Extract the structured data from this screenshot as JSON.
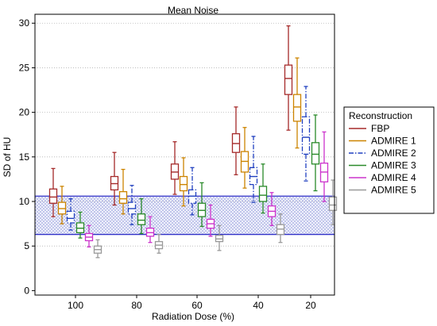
{
  "chart_data": {
    "type": "box",
    "title": "Mean Noise",
    "xlabel": "Radiation Dose (%)",
    "ylabel": "SD of HU",
    "categories": [
      "100",
      "80",
      "60",
      "40",
      "20"
    ],
    "ylim": [
      -0.5,
      31
    ],
    "yticks": [
      "0",
      "5",
      "10",
      "15",
      "20",
      "25",
      "30"
    ],
    "grid": "horizontal dotted",
    "legend_title": "Reconstruction",
    "legend_position": "right",
    "reference_band": {
      "low": 6.3,
      "high": 10.6,
      "color": "#3030c8"
    },
    "series": [
      {
        "name": "FBP",
        "color": "#a52a2a",
        "dash": "solid",
        "boxes": [
          {
            "min": 8.3,
            "q1": 9.8,
            "median": 10.5,
            "q3": 11.4,
            "max": 13.7
          },
          {
            "min": 9.6,
            "q1": 11.3,
            "median": 12.0,
            "q3": 12.8,
            "max": 15.5
          },
          {
            "min": 10.8,
            "q1": 12.5,
            "median": 13.3,
            "q3": 14.2,
            "max": 16.7
          },
          {
            "min": 13.0,
            "q1": 15.5,
            "median": 16.5,
            "q3": 17.6,
            "max": 20.6
          },
          {
            "min": 18.0,
            "q1": 22.0,
            "median": 23.8,
            "q3": 25.3,
            "max": 29.7
          }
        ]
      },
      {
        "name": "ADMIRE 1",
        "color": "#cc8400",
        "dash": "solid",
        "boxes": [
          {
            "min": 7.5,
            "q1": 8.6,
            "median": 9.2,
            "q3": 9.9,
            "max": 11.7
          },
          {
            "min": 8.6,
            "q1": 9.8,
            "median": 10.3,
            "q3": 11.1,
            "max": 13.6
          },
          {
            "min": 9.5,
            "q1": 11.2,
            "median": 11.9,
            "q3": 12.8,
            "max": 14.9
          },
          {
            "min": 11.5,
            "q1": 13.3,
            "median": 14.5,
            "q3": 15.6,
            "max": 18.3
          },
          {
            "min": 16.0,
            "q1": 19.0,
            "median": 20.6,
            "q3": 22.0,
            "max": 26.1
          }
        ]
      },
      {
        "name": "ADMIRE 2",
        "color": "#1f3fbf",
        "dash": "dashdot",
        "boxes": [
          {
            "min": 6.8,
            "q1": 7.6,
            "median": 8.1,
            "q3": 8.9,
            "max": 10.3
          },
          {
            "min": 7.4,
            "q1": 8.6,
            "median": 9.2,
            "q3": 9.9,
            "max": 11.8
          },
          {
            "min": 8.5,
            "q1": 9.8,
            "median": 10.6,
            "q3": 11.3,
            "max": 13.8
          },
          {
            "min": 9.9,
            "q1": 11.9,
            "median": 12.8,
            "q3": 13.8,
            "max": 17.3
          },
          {
            "min": 12.3,
            "q1": 15.3,
            "median": 17.2,
            "q3": 19.5,
            "max": 22.9
          }
        ]
      },
      {
        "name": "ADMIRE 3",
        "color": "#2a8a2a",
        "dash": "solid",
        "boxes": [
          {
            "min": 5.9,
            "q1": 6.5,
            "median": 7.0,
            "q3": 7.6,
            "max": 8.8
          },
          {
            "min": 6.4,
            "q1": 7.4,
            "median": 7.9,
            "q3": 8.6,
            "max": 10.3
          },
          {
            "min": 7.2,
            "q1": 8.3,
            "median": 9.0,
            "q3": 9.8,
            "max": 12.1
          },
          {
            "min": 8.7,
            "q1": 10.0,
            "median": 10.7,
            "q3": 11.7,
            "max": 14.2
          },
          {
            "min": 11.2,
            "q1": 14.2,
            "median": 15.3,
            "q3": 16.6,
            "max": 19.7
          }
        ]
      },
      {
        "name": "ADMIRE 4",
        "color": "#cc33cc",
        "dash": "solid",
        "boxes": [
          {
            "min": 4.9,
            "q1": 5.6,
            "median": 6.0,
            "q3": 6.4,
            "max": 7.3
          },
          {
            "min": 5.4,
            "q1": 6.1,
            "median": 6.5,
            "q3": 7.0,
            "max": 8.3
          },
          {
            "min": 6.1,
            "q1": 7.0,
            "median": 7.5,
            "q3": 8.0,
            "max": 9.6
          },
          {
            "min": 7.3,
            "q1": 8.3,
            "median": 8.9,
            "q3": 9.5,
            "max": 11.0
          },
          {
            "min": 10.0,
            "q1": 12.2,
            "median": 13.3,
            "q3": 14.3,
            "max": 17.8
          }
        ]
      },
      {
        "name": "ADMIRE 5",
        "color": "#999999",
        "dash": "solid",
        "boxes": [
          {
            "min": 3.7,
            "q1": 4.2,
            "median": 4.6,
            "q3": 5.0,
            "max": 5.7
          },
          {
            "min": 4.2,
            "q1": 4.7,
            "median": 5.1,
            "q3": 5.5,
            "max": 6.3
          },
          {
            "min": 4.5,
            "q1": 5.5,
            "median": 5.8,
            "q3": 6.2,
            "max": 7.3
          },
          {
            "min": 5.4,
            "q1": 6.3,
            "median": 6.9,
            "q3": 7.4,
            "max": 8.6
          },
          {
            "min": 7.4,
            "q1": 9.0,
            "median": 9.6,
            "q3": 10.5,
            "max": 12.4
          }
        ]
      }
    ]
  }
}
